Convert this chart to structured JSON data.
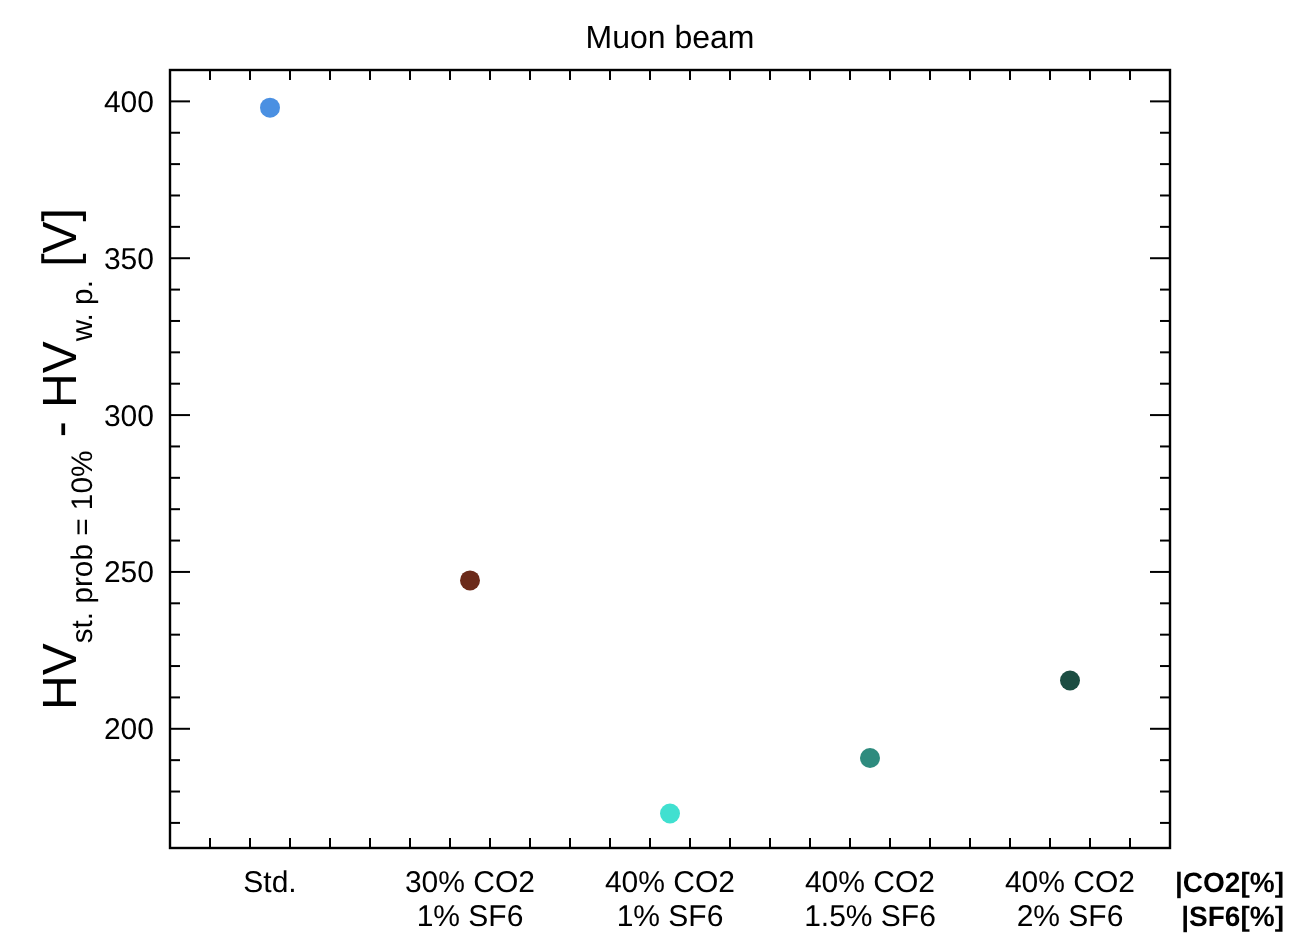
{
  "chart_data": {
    "type": "scatter",
    "title": "Muon beam",
    "ylabel": "HV$_{st. prob = 10%}$ - HV$_{w. p.}$ [V]",
    "categories": [
      "Std.",
      "30% CO2\n1% SF6",
      "40% CO2\n1% SF6",
      "40% CO2\n1.5% SF6",
      "40% CO2\n2% SF6"
    ],
    "values": [
      398,
      247.3,
      173,
      190.7,
      215.4
    ],
    "colors": [
      "#4a90e2",
      "#6b2a1a",
      "#40e0d0",
      "#2e8b7e",
      "#1b4d42"
    ],
    "marker": "circle",
    "ylim": [
      162,
      410
    ],
    "yticks": [
      {
        "value": 170,
        "label": null
      },
      {
        "value": 180,
        "label": null
      },
      {
        "value": 190,
        "label": null
      },
      200,
      {
        "value": 210,
        "label": null
      },
      {
        "value": 220,
        "label": null
      },
      {
        "value": 230,
        "label": null
      },
      {
        "value": 240,
        "label": null
      },
      250,
      {
        "value": 260,
        "label": null
      },
      {
        "value": 270,
        "label": null
      },
      {
        "value": 280,
        "label": null
      },
      {
        "value": 290,
        "label": null
      },
      300,
      {
        "value": 310,
        "label": null
      },
      {
        "value": 320,
        "label": null
      },
      {
        "value": 330,
        "label": null
      },
      {
        "value": 340,
        "label": null
      },
      350,
      {
        "value": 360,
        "label": null
      },
      {
        "value": 370,
        "label": null
      },
      {
        "value": 380,
        "label": null
      },
      {
        "value": 390,
        "label": null
      },
      400
    ],
    "annotations": [
      "|CO2[%]",
      "|SF6[%]"
    ],
    "grid": false
  }
}
